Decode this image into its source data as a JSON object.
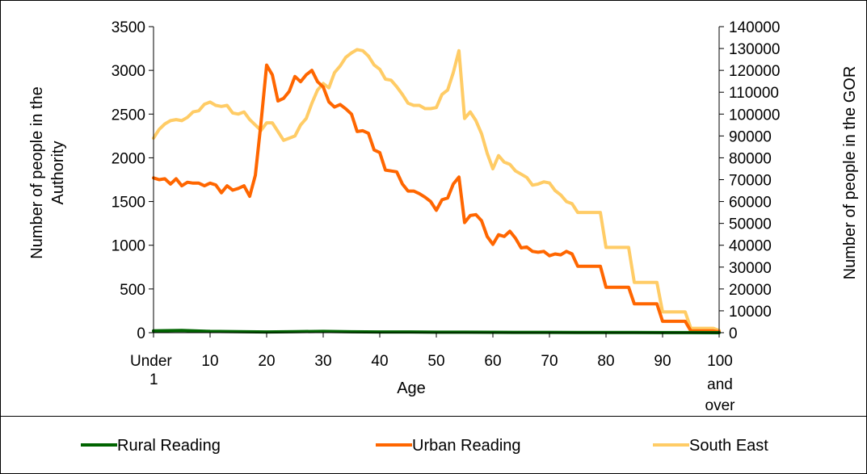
{
  "chart_data": {
    "type": "line",
    "xlabel": "Age",
    "ylabel": "Number of people in the Authority",
    "y2label": "Number of people in the GOR",
    "xlim": [
      0,
      100
    ],
    "ylim": [
      0,
      3500
    ],
    "y2lim": [
      0,
      140000
    ],
    "x_ticks": [
      {
        "value": 0,
        "label": "Under 1"
      },
      {
        "value": 10,
        "label": "10"
      },
      {
        "value": 20,
        "label": "20"
      },
      {
        "value": 30,
        "label": "30"
      },
      {
        "value": 40,
        "label": "40"
      },
      {
        "value": 50,
        "label": "50"
      },
      {
        "value": 60,
        "label": "60"
      },
      {
        "value": 70,
        "label": "70"
      },
      {
        "value": 80,
        "label": "80"
      },
      {
        "value": 90,
        "label": "90"
      },
      {
        "value": 100,
        "label": "100 and over"
      }
    ],
    "y_ticks": [
      0,
      500,
      1000,
      1500,
      2000,
      2500,
      3000,
      3500
    ],
    "y2_ticks": [
      0,
      10000,
      20000,
      30000,
      40000,
      50000,
      60000,
      70000,
      80000,
      90000,
      100000,
      110000,
      120000,
      130000,
      140000
    ],
    "grid": false,
    "legend_position": "bottom",
    "series": [
      {
        "name": "Rural Reading",
        "color": "#006400",
        "axis": "left",
        "x": [
          0,
          5,
          10,
          15,
          20,
          25,
          30,
          35,
          40,
          45,
          50,
          55,
          60,
          65,
          70,
          75,
          80,
          85,
          90,
          95,
          100
        ],
        "values": [
          20,
          25,
          15,
          12,
          8,
          12,
          15,
          10,
          8,
          8,
          6,
          6,
          5,
          4,
          4,
          3,
          2,
          2,
          1,
          1,
          0
        ]
      },
      {
        "name": "Urban Reading",
        "color": "#FF6600",
        "axis": "left",
        "x": [
          0,
          1,
          2,
          3,
          4,
          5,
          6,
          7,
          8,
          9,
          10,
          11,
          12,
          13,
          14,
          15,
          16,
          17,
          18,
          19,
          20,
          21,
          22,
          23,
          24,
          25,
          26,
          27,
          28,
          29,
          30,
          31,
          32,
          33,
          34,
          35,
          36,
          37,
          38,
          39,
          40,
          41,
          42,
          43,
          44,
          45,
          46,
          47,
          48,
          49,
          50,
          51,
          52,
          53,
          54,
          55,
          56,
          57,
          58,
          59,
          60,
          61,
          62,
          63,
          64,
          65,
          66,
          67,
          68,
          69,
          70,
          71,
          72,
          73,
          74,
          75,
          76,
          77,
          78,
          79,
          80,
          81,
          82,
          83,
          84,
          85,
          86,
          87,
          88,
          89,
          90,
          91,
          92,
          93,
          94,
          95,
          96,
          97,
          98,
          99,
          100
        ],
        "values": [
          1770,
          1750,
          1760,
          1700,
          1760,
          1680,
          1720,
          1710,
          1710,
          1680,
          1710,
          1690,
          1600,
          1680,
          1630,
          1650,
          1680,
          1560,
          1800,
          2400,
          3060,
          2950,
          2650,
          2680,
          2760,
          2930,
          2870,
          2950,
          3000,
          2870,
          2810,
          2640,
          2580,
          2610,
          2560,
          2500,
          2300,
          2310,
          2280,
          2090,
          2060,
          1860,
          1850,
          1840,
          1700,
          1620,
          1620,
          1590,
          1550,
          1500,
          1400,
          1520,
          1540,
          1700,
          1780,
          1260,
          1340,
          1350,
          1280,
          1100,
          1010,
          1120,
          1100,
          1160,
          1080,
          970,
          980,
          930,
          920,
          930,
          880,
          900,
          890,
          930,
          900,
          760,
          760,
          760,
          760,
          760,
          520,
          520,
          520,
          520,
          520,
          330,
          330,
          330,
          330,
          330,
          130,
          130,
          130,
          130,
          130,
          20,
          20,
          20,
          20,
          20,
          10
        ]
      },
      {
        "name": "South East",
        "color": "#FFCC66",
        "axis": "right",
        "x": [
          0,
          1,
          2,
          3,
          4,
          5,
          6,
          7,
          8,
          9,
          10,
          11,
          12,
          13,
          14,
          15,
          16,
          17,
          18,
          19,
          20,
          21,
          22,
          23,
          24,
          25,
          26,
          27,
          28,
          29,
          30,
          31,
          32,
          33,
          34,
          35,
          36,
          37,
          38,
          39,
          40,
          41,
          42,
          43,
          44,
          45,
          46,
          47,
          48,
          49,
          50,
          51,
          52,
          53,
          54,
          55,
          56,
          57,
          58,
          59,
          60,
          61,
          62,
          63,
          64,
          65,
          66,
          67,
          68,
          69,
          70,
          71,
          72,
          73,
          74,
          75,
          76,
          77,
          78,
          79,
          80,
          81,
          82,
          83,
          84,
          85,
          86,
          87,
          88,
          89,
          90,
          91,
          92,
          93,
          94,
          95,
          96,
          97,
          98,
          99,
          100
        ],
        "values": [
          89000,
          93000,
          95500,
          97000,
          97500,
          97000,
          98500,
          101000,
          101500,
          104500,
          105500,
          104000,
          103500,
          104000,
          100500,
          100000,
          101000,
          97500,
          95000,
          92500,
          96000,
          96000,
          92000,
          88000,
          89000,
          90000,
          95000,
          98000,
          105000,
          111000,
          114000,
          112000,
          119000,
          122000,
          126000,
          128000,
          129500,
          129000,
          126500,
          122500,
          120500,
          116000,
          115500,
          112500,
          109000,
          105000,
          104000,
          104000,
          102500,
          102500,
          103000,
          109000,
          111000,
          119000,
          129000,
          98000,
          101000,
          97000,
          91000,
          82000,
          75000,
          81000,
          78000,
          77000,
          74000,
          72500,
          71000,
          67500,
          68000,
          69000,
          68500,
          65000,
          63000,
          60000,
          59000,
          55000,
          55000,
          55000,
          55000,
          55000,
          39000,
          39000,
          39000,
          39000,
          39000,
          23000,
          23000,
          23000,
          23000,
          23000,
          9500,
          9500,
          9500,
          9500,
          9500,
          2000,
          2000,
          2000,
          2000,
          2000,
          1000
        ]
      }
    ]
  }
}
